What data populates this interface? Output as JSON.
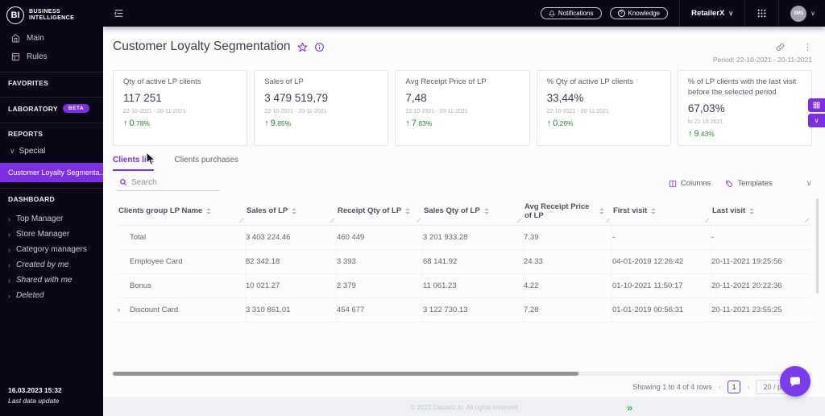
{
  "colors": {
    "accent": "#7c2fe2",
    "positive": "#2e7d32",
    "sidebar_bg": "#0c0717"
  },
  "glyphs": {
    "chevron_right": "›",
    "chevron_left": "‹",
    "chevron_down": "∨",
    "up_arrow": "↑",
    "kebab": "⋮",
    "logo_mark": "»"
  },
  "topbar": {
    "notifications_label": "Notifications",
    "knowledge_label": "Knowledge",
    "org_label": "RetailerX",
    "avatar_initials": "SM1"
  },
  "sidebar": {
    "logo_text": "BI",
    "brand_line1": "BUSINESS",
    "brand_line2": "INTELLIGENCE",
    "nav_main": "Main",
    "nav_rules": "Rules",
    "favorites_label": "FAVORITES",
    "laboratory_label": "LABORATORY",
    "beta_badge": "BETA",
    "reports_label": "REPORTS",
    "special_label": "Special",
    "active_report": "Customer Loyalty Segmenta...",
    "dashboard_label": "DASHBOARD",
    "dashboard_items": [
      {
        "label": "Top Manager",
        "italic": false
      },
      {
        "label": "Store Manager",
        "italic": false
      },
      {
        "label": "Category managers",
        "italic": false
      },
      {
        "label": "Created by me",
        "italic": true
      },
      {
        "label": "Shared with me",
        "italic": true
      },
      {
        "label": "Deleted",
        "italic": true
      }
    ],
    "last_update_time": "16.03.2023 15:32",
    "last_update_label": "Last data update"
  },
  "header": {
    "title": "Customer Loyalty Segmentation",
    "period_label": "Period: 22-10-2021 - 20-11-2021"
  },
  "kpi_cards": [
    {
      "label": "Qty of active LP clients",
      "value": "117 251",
      "period": "22-10-2021 - 20-11-2021",
      "delta": "0.78%",
      "trend": "up"
    },
    {
      "label": "Sales of LP",
      "value": "3 479 519,79",
      "period": "22-10-2021 - 20-11-2021",
      "delta": "9.85%",
      "trend": "up"
    },
    {
      "label": "Avg Receipt Price of LP",
      "value": "7,48",
      "period": "22-10-2021 - 20-11-2021",
      "delta": "7.83%",
      "trend": "up"
    },
    {
      "label": "% Qty of active LP clients",
      "value": "33,44%",
      "period": "22-10-2021 - 20-11-2021",
      "delta": "0.26%",
      "trend": "up"
    },
    {
      "label": "% of LP clients with the last visit before the selected period",
      "value": "67,03%",
      "period": "to 22-10-2021",
      "delta": "9.43%",
      "trend": "up"
    }
  ],
  "tabs": [
    {
      "label": "Clients list",
      "active": true
    },
    {
      "label": "Clients purchases",
      "active": false
    }
  ],
  "toolbar": {
    "search_placeholder": "Search",
    "columns_label": "Columns",
    "templates_label": "Templates"
  },
  "table": {
    "columns": [
      "Clients group LP Name",
      "Sales of LP",
      "Receipt Qty of LP",
      "Sales Qty of LP",
      "Avg Receipt Price of LP",
      "First visit",
      "Last visit"
    ],
    "rows": [
      {
        "expandable": false,
        "cells": [
          "Total",
          "3 403 224.46",
          "460 449",
          "3 201 933.28",
          "7.39",
          "-",
          "-"
        ]
      },
      {
        "expandable": false,
        "cells": [
          "Employee Card",
          "82 342.18",
          "3 393",
          "68 141.92",
          "24.33",
          "04-01-2019 12:26:42",
          "20-11-2021 19:25:56"
        ]
      },
      {
        "expandable": false,
        "cells": [
          "Bonus",
          "10 021.27",
          "2 379",
          "11 061.23",
          "4.22",
          "01-10-2021 11:50:17",
          "20-11-2021 20:22:36"
        ]
      },
      {
        "expandable": true,
        "cells": [
          "Discount Card",
          "3 310 861.01",
          "454 677",
          "3 122 730.13",
          "7.28",
          "01-01-2019 00:56:31",
          "20-11-2021 23:55:25"
        ]
      }
    ]
  },
  "pagination": {
    "summary": "Showing 1 to 4 of 4 rows",
    "current_page": "1",
    "page_size": "20 / page"
  },
  "footer": {
    "copyright": "© 2023 Datawiz.io. All rights reserved"
  }
}
